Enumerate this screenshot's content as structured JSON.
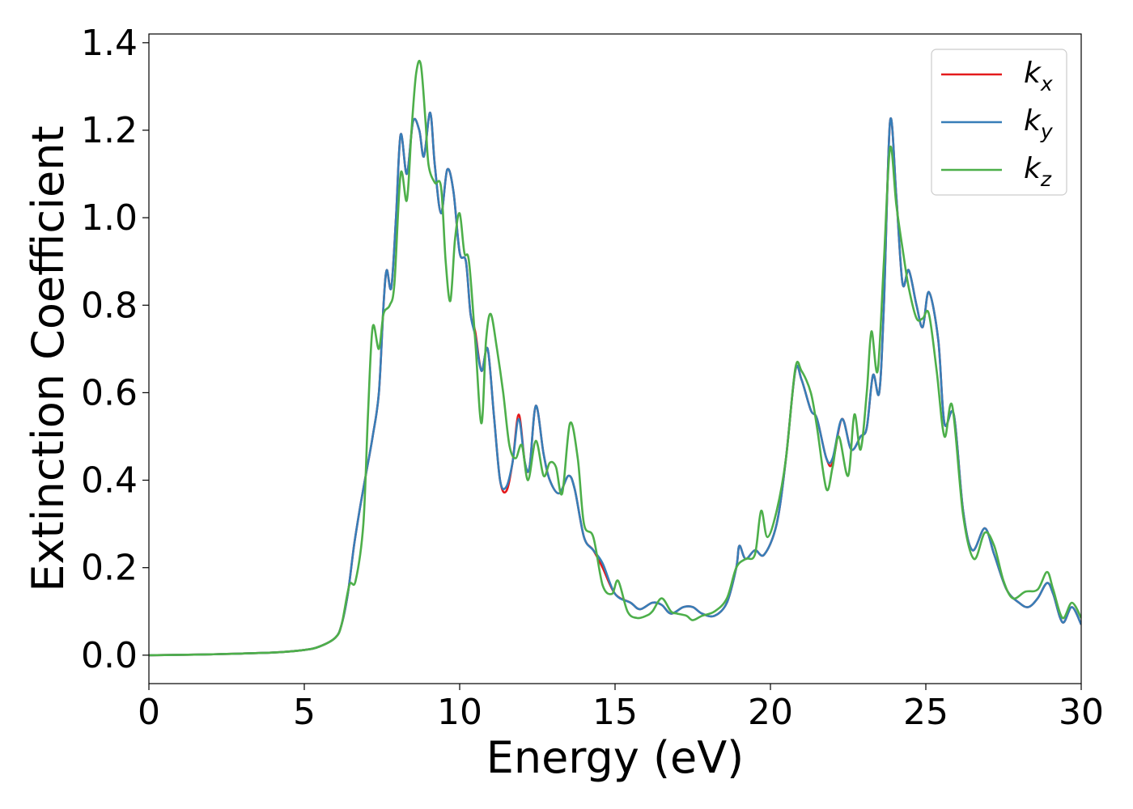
{
  "chart_data": {
    "type": "line",
    "xlabel": "Energy (eV)",
    "ylabel": "Extinction Coefficient",
    "xlim": [
      0,
      30
    ],
    "ylim": [
      -0.065,
      1.42
    ],
    "xticks": [
      0,
      5,
      10,
      15,
      20,
      25,
      30
    ],
    "yticks": [
      0.0,
      0.2,
      0.4,
      0.6,
      0.8,
      1.0,
      1.2,
      1.4
    ],
    "grid": false,
    "legend_position": "top-right",
    "series": [
      {
        "name": "k",
        "subscript": "x",
        "color": "#e41a1c",
        "points": [
          [
            0,
            0.0
          ],
          [
            2,
            0.002
          ],
          [
            4,
            0.006
          ],
          [
            5,
            0.012
          ],
          [
            5.5,
            0.02
          ],
          [
            6,
            0.04
          ],
          [
            6.2,
            0.07
          ],
          [
            6.4,
            0.14
          ],
          [
            6.6,
            0.25
          ],
          [
            6.8,
            0.34
          ],
          [
            7.0,
            0.42
          ],
          [
            7.2,
            0.5
          ],
          [
            7.4,
            0.6
          ],
          [
            7.55,
            0.8
          ],
          [
            7.65,
            0.88
          ],
          [
            7.8,
            0.84
          ],
          [
            7.95,
            1.0
          ],
          [
            8.1,
            1.19
          ],
          [
            8.3,
            1.1
          ],
          [
            8.5,
            1.22
          ],
          [
            8.7,
            1.2
          ],
          [
            8.85,
            1.14
          ],
          [
            9.05,
            1.24
          ],
          [
            9.2,
            1.12
          ],
          [
            9.4,
            1.01
          ],
          [
            9.6,
            1.11
          ],
          [
            9.8,
            1.06
          ],
          [
            10.0,
            0.92
          ],
          [
            10.2,
            0.9
          ],
          [
            10.35,
            0.78
          ],
          [
            10.5,
            0.74
          ],
          [
            10.7,
            0.65
          ],
          [
            10.9,
            0.7
          ],
          [
            11.1,
            0.55
          ],
          [
            11.3,
            0.4
          ],
          [
            11.5,
            0.375
          ],
          [
            11.7,
            0.44
          ],
          [
            11.9,
            0.55
          ],
          [
            12.1,
            0.44
          ],
          [
            12.25,
            0.43
          ],
          [
            12.45,
            0.57
          ],
          [
            12.7,
            0.46
          ],
          [
            12.9,
            0.4
          ],
          [
            13.2,
            0.37
          ],
          [
            13.5,
            0.41
          ],
          [
            13.7,
            0.38
          ],
          [
            14.0,
            0.27
          ],
          [
            14.3,
            0.24
          ],
          [
            14.6,
            0.2
          ],
          [
            15.0,
            0.14
          ],
          [
            15.5,
            0.12
          ],
          [
            15.8,
            0.105
          ],
          [
            16.2,
            0.12
          ],
          [
            16.5,
            0.115
          ],
          [
            16.8,
            0.095
          ],
          [
            17.2,
            0.11
          ],
          [
            17.5,
            0.11
          ],
          [
            17.8,
            0.095
          ],
          [
            18.2,
            0.09
          ],
          [
            18.6,
            0.12
          ],
          [
            18.9,
            0.2
          ],
          [
            19.0,
            0.25
          ],
          [
            19.2,
            0.22
          ],
          [
            19.5,
            0.24
          ],
          [
            19.8,
            0.23
          ],
          [
            20.2,
            0.3
          ],
          [
            20.5,
            0.45
          ],
          [
            20.8,
            0.65
          ],
          [
            21.0,
            0.63
          ],
          [
            21.3,
            0.56
          ],
          [
            21.5,
            0.54
          ],
          [
            21.8,
            0.45
          ],
          [
            22.0,
            0.44
          ],
          [
            22.3,
            0.54
          ],
          [
            22.6,
            0.47
          ],
          [
            22.9,
            0.5
          ],
          [
            23.1,
            0.52
          ],
          [
            23.3,
            0.64
          ],
          [
            23.5,
            0.6
          ],
          [
            23.65,
            0.8
          ],
          [
            23.85,
            1.22
          ],
          [
            24.05,
            1.05
          ],
          [
            24.25,
            0.85
          ],
          [
            24.45,
            0.88
          ],
          [
            24.7,
            0.8
          ],
          [
            24.9,
            0.75
          ],
          [
            25.1,
            0.83
          ],
          [
            25.4,
            0.72
          ],
          [
            25.6,
            0.53
          ],
          [
            25.9,
            0.55
          ],
          [
            26.2,
            0.33
          ],
          [
            26.5,
            0.24
          ],
          [
            26.9,
            0.29
          ],
          [
            27.2,
            0.23
          ],
          [
            27.6,
            0.15
          ],
          [
            28.0,
            0.12
          ],
          [
            28.3,
            0.11
          ],
          [
            28.6,
            0.13
          ],
          [
            28.9,
            0.165
          ],
          [
            29.1,
            0.14
          ],
          [
            29.4,
            0.075
          ],
          [
            29.7,
            0.11
          ],
          [
            30.0,
            0.07
          ]
        ]
      },
      {
        "name": "k",
        "subscript": "y",
        "color": "#377eb8",
        "points": [
          [
            0,
            0.0
          ],
          [
            2,
            0.002
          ],
          [
            4,
            0.006
          ],
          [
            5,
            0.012
          ],
          [
            5.5,
            0.02
          ],
          [
            6,
            0.04
          ],
          [
            6.2,
            0.07
          ],
          [
            6.4,
            0.14
          ],
          [
            6.6,
            0.25
          ],
          [
            6.8,
            0.34
          ],
          [
            7.0,
            0.42
          ],
          [
            7.2,
            0.5
          ],
          [
            7.4,
            0.6
          ],
          [
            7.55,
            0.8
          ],
          [
            7.65,
            0.88
          ],
          [
            7.8,
            0.84
          ],
          [
            7.95,
            1.0
          ],
          [
            8.1,
            1.19
          ],
          [
            8.3,
            1.1
          ],
          [
            8.5,
            1.22
          ],
          [
            8.7,
            1.2
          ],
          [
            8.85,
            1.14
          ],
          [
            9.05,
            1.24
          ],
          [
            9.2,
            1.12
          ],
          [
            9.4,
            1.01
          ],
          [
            9.6,
            1.11
          ],
          [
            9.8,
            1.06
          ],
          [
            10.0,
            0.92
          ],
          [
            10.2,
            0.9
          ],
          [
            10.35,
            0.78
          ],
          [
            10.5,
            0.73
          ],
          [
            10.7,
            0.65
          ],
          [
            10.9,
            0.7
          ],
          [
            11.1,
            0.55
          ],
          [
            11.3,
            0.4
          ],
          [
            11.5,
            0.385
          ],
          [
            11.7,
            0.44
          ],
          [
            11.9,
            0.54
          ],
          [
            12.1,
            0.44
          ],
          [
            12.25,
            0.43
          ],
          [
            12.45,
            0.57
          ],
          [
            12.7,
            0.46
          ],
          [
            12.9,
            0.4
          ],
          [
            13.2,
            0.37
          ],
          [
            13.5,
            0.41
          ],
          [
            13.7,
            0.38
          ],
          [
            14.0,
            0.27
          ],
          [
            14.3,
            0.24
          ],
          [
            14.6,
            0.21
          ],
          [
            15.0,
            0.14
          ],
          [
            15.5,
            0.12
          ],
          [
            15.8,
            0.105
          ],
          [
            16.2,
            0.12
          ],
          [
            16.5,
            0.115
          ],
          [
            16.8,
            0.095
          ],
          [
            17.2,
            0.11
          ],
          [
            17.5,
            0.11
          ],
          [
            17.8,
            0.095
          ],
          [
            18.2,
            0.09
          ],
          [
            18.6,
            0.12
          ],
          [
            18.9,
            0.2
          ],
          [
            19.0,
            0.25
          ],
          [
            19.2,
            0.22
          ],
          [
            19.5,
            0.24
          ],
          [
            19.8,
            0.23
          ],
          [
            20.2,
            0.3
          ],
          [
            20.5,
            0.45
          ],
          [
            20.8,
            0.65
          ],
          [
            21.0,
            0.63
          ],
          [
            21.3,
            0.56
          ],
          [
            21.5,
            0.54
          ],
          [
            21.8,
            0.45
          ],
          [
            22.0,
            0.45
          ],
          [
            22.3,
            0.54
          ],
          [
            22.6,
            0.47
          ],
          [
            22.9,
            0.5
          ],
          [
            23.1,
            0.52
          ],
          [
            23.3,
            0.64
          ],
          [
            23.5,
            0.6
          ],
          [
            23.65,
            0.8
          ],
          [
            23.85,
            1.22
          ],
          [
            24.05,
            1.05
          ],
          [
            24.25,
            0.85
          ],
          [
            24.45,
            0.88
          ],
          [
            24.7,
            0.8
          ],
          [
            24.9,
            0.75
          ],
          [
            25.1,
            0.83
          ],
          [
            25.4,
            0.72
          ],
          [
            25.6,
            0.53
          ],
          [
            25.9,
            0.55
          ],
          [
            26.2,
            0.33
          ],
          [
            26.5,
            0.24
          ],
          [
            26.9,
            0.29
          ],
          [
            27.2,
            0.23
          ],
          [
            27.6,
            0.15
          ],
          [
            28.0,
            0.12
          ],
          [
            28.3,
            0.11
          ],
          [
            28.6,
            0.13
          ],
          [
            28.9,
            0.165
          ],
          [
            29.1,
            0.14
          ],
          [
            29.4,
            0.075
          ],
          [
            29.7,
            0.11
          ],
          [
            30.0,
            0.07
          ]
        ]
      },
      {
        "name": "k",
        "subscript": "z",
        "color": "#4daf4a",
        "points": [
          [
            0,
            0.0
          ],
          [
            2,
            0.002
          ],
          [
            4,
            0.006
          ],
          [
            5,
            0.012
          ],
          [
            5.5,
            0.02
          ],
          [
            6,
            0.04
          ],
          [
            6.2,
            0.07
          ],
          [
            6.45,
            0.16
          ],
          [
            6.65,
            0.17
          ],
          [
            6.9,
            0.3
          ],
          [
            7.05,
            0.55
          ],
          [
            7.2,
            0.75
          ],
          [
            7.4,
            0.7
          ],
          [
            7.55,
            0.78
          ],
          [
            7.75,
            0.8
          ],
          [
            7.9,
            0.85
          ],
          [
            8.1,
            1.1
          ],
          [
            8.3,
            1.04
          ],
          [
            8.45,
            1.2
          ],
          [
            8.6,
            1.33
          ],
          [
            8.75,
            1.35
          ],
          [
            8.9,
            1.22
          ],
          [
            9.0,
            1.12
          ],
          [
            9.2,
            1.08
          ],
          [
            9.4,
            1.07
          ],
          [
            9.55,
            0.9
          ],
          [
            9.7,
            0.81
          ],
          [
            9.85,
            0.95
          ],
          [
            10.0,
            1.01
          ],
          [
            10.15,
            0.92
          ],
          [
            10.3,
            0.9
          ],
          [
            10.5,
            0.72
          ],
          [
            10.7,
            0.53
          ],
          [
            10.85,
            0.72
          ],
          [
            11.0,
            0.78
          ],
          [
            11.2,
            0.7
          ],
          [
            11.4,
            0.6
          ],
          [
            11.6,
            0.48
          ],
          [
            11.8,
            0.45
          ],
          [
            12.0,
            0.48
          ],
          [
            12.2,
            0.4
          ],
          [
            12.45,
            0.49
          ],
          [
            12.7,
            0.41
          ],
          [
            12.9,
            0.44
          ],
          [
            13.1,
            0.43
          ],
          [
            13.3,
            0.37
          ],
          [
            13.55,
            0.53
          ],
          [
            13.8,
            0.45
          ],
          [
            14.0,
            0.3
          ],
          [
            14.3,
            0.27
          ],
          [
            14.6,
            0.16
          ],
          [
            14.9,
            0.14
          ],
          [
            15.1,
            0.17
          ],
          [
            15.4,
            0.1
          ],
          [
            15.7,
            0.085
          ],
          [
            16.0,
            0.09
          ],
          [
            16.2,
            0.1
          ],
          [
            16.5,
            0.13
          ],
          [
            16.8,
            0.1
          ],
          [
            17.0,
            0.095
          ],
          [
            17.3,
            0.09
          ],
          [
            17.5,
            0.08
          ],
          [
            17.8,
            0.09
          ],
          [
            18.2,
            0.1
          ],
          [
            18.6,
            0.13
          ],
          [
            18.9,
            0.2
          ],
          [
            19.2,
            0.22
          ],
          [
            19.5,
            0.23
          ],
          [
            19.7,
            0.33
          ],
          [
            19.9,
            0.27
          ],
          [
            20.2,
            0.33
          ],
          [
            20.5,
            0.45
          ],
          [
            20.8,
            0.655
          ],
          [
            21.0,
            0.65
          ],
          [
            21.3,
            0.6
          ],
          [
            21.5,
            0.52
          ],
          [
            21.8,
            0.38
          ],
          [
            22.0,
            0.43
          ],
          [
            22.2,
            0.5
          ],
          [
            22.5,
            0.41
          ],
          [
            22.7,
            0.55
          ],
          [
            22.9,
            0.47
          ],
          [
            23.1,
            0.6
          ],
          [
            23.25,
            0.74
          ],
          [
            23.45,
            0.65
          ],
          [
            23.65,
            0.9
          ],
          [
            23.85,
            1.16
          ],
          [
            24.05,
            1.03
          ],
          [
            24.25,
            0.93
          ],
          [
            24.45,
            0.84
          ],
          [
            24.7,
            0.77
          ],
          [
            24.9,
            0.77
          ],
          [
            25.1,
            0.78
          ],
          [
            25.35,
            0.65
          ],
          [
            25.6,
            0.5
          ],
          [
            25.85,
            0.57
          ],
          [
            26.2,
            0.32
          ],
          [
            26.55,
            0.22
          ],
          [
            26.9,
            0.28
          ],
          [
            27.2,
            0.25
          ],
          [
            27.5,
            0.17
          ],
          [
            27.8,
            0.13
          ],
          [
            28.2,
            0.145
          ],
          [
            28.6,
            0.15
          ],
          [
            28.9,
            0.19
          ],
          [
            29.1,
            0.15
          ],
          [
            29.4,
            0.085
          ],
          [
            29.7,
            0.12
          ],
          [
            30.0,
            0.085
          ]
        ]
      }
    ]
  }
}
